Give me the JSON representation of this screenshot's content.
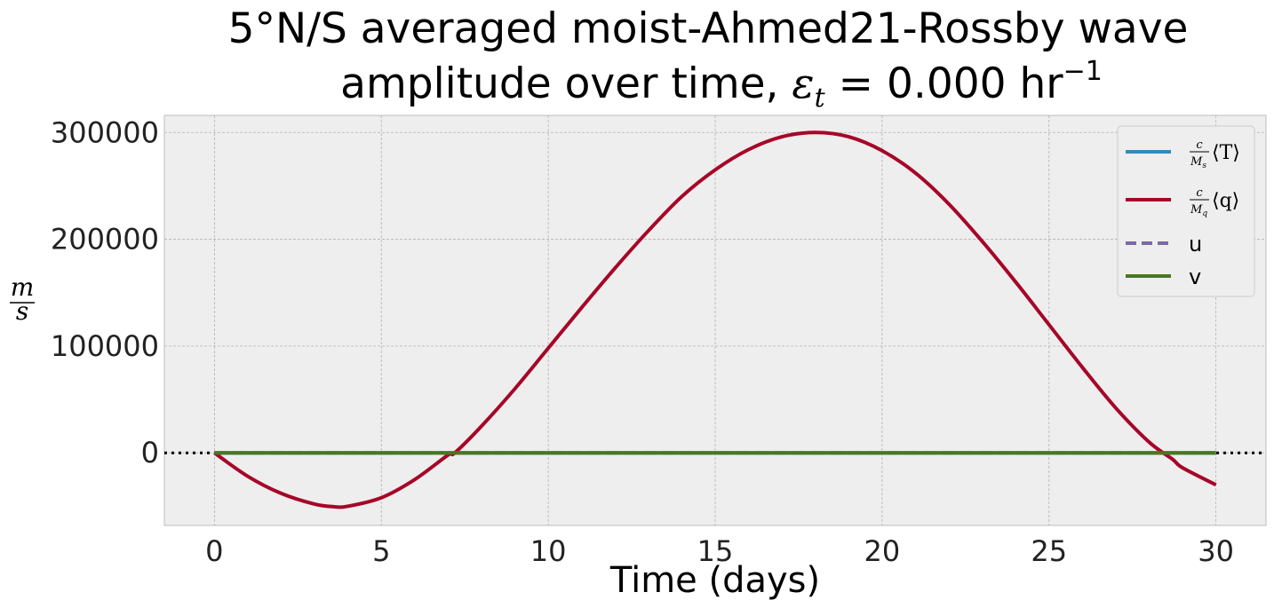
{
  "chart_data": {
    "type": "line",
    "title_line1": "5°N/S averaged moist-Ahmed21-Rossby wave",
    "title_line2_prefix": "amplitude over time, ",
    "title_eps": "ε",
    "title_eps_sub": "t",
    "title_line2_value": " = 0.000 hr",
    "title_exp": "−1",
    "xlabel": "Time (days)",
    "ylabel_num": "m",
    "ylabel_den": "s",
    "xlim": [
      -1.5,
      31.5
    ],
    "ylim": [
      -68000,
      316000
    ],
    "xticks": [
      0,
      5,
      10,
      15,
      20,
      25,
      30
    ],
    "yticks": [
      0,
      100000,
      200000,
      300000
    ],
    "grid": true,
    "zero_line": true,
    "legend_position": "top-right",
    "x": [
      0,
      1,
      2,
      3,
      3.6,
      4,
      5,
      6,
      7,
      7.2,
      8,
      9,
      10,
      11,
      12,
      13,
      14,
      15,
      16,
      17,
      18,
      19,
      20,
      21,
      22,
      23,
      24,
      25,
      26,
      27,
      28,
      28.7,
      29,
      30
    ],
    "series": [
      {
        "name": "T",
        "label_frac_num": "c",
        "label_frac_den": "M",
        "label_frac_den_sub": "s",
        "label_bracket": "⟨T⟩",
        "color": "#348ABD",
        "dash": "solid",
        "values": [
          0,
          0,
          0,
          0,
          0,
          0,
          0,
          0,
          0,
          0,
          0,
          0,
          0,
          0,
          0,
          0,
          0,
          0,
          0,
          0,
          0,
          0,
          0,
          0,
          0,
          0,
          0,
          0,
          0,
          0,
          0,
          0,
          0,
          0
        ]
      },
      {
        "name": "q",
        "label_frac_num": "c",
        "label_frac_den": "M",
        "label_frac_den_sub": "q",
        "label_bracket": "⟨q⟩",
        "color": "#A60628",
        "dash": "solid",
        "values": [
          0,
          -22000,
          -38000,
          -48000,
          -50500,
          -50000,
          -42000,
          -25000,
          -2000,
          0,
          25000,
          60000,
          98000,
          136000,
          173000,
          208000,
          240000,
          265000,
          284000,
          296000,
          300000,
          296000,
          283000,
          262000,
          233000,
          198000,
          160000,
          120000,
          80000,
          42000,
          10000,
          -6000,
          -14000,
          -30000
        ]
      },
      {
        "name": "u",
        "label": "u",
        "color": "#7A68A6",
        "dash": "dashed",
        "values": [
          0,
          0,
          0,
          0,
          0,
          0,
          0,
          0,
          0,
          0,
          0,
          0,
          0,
          0,
          0,
          0,
          0,
          0,
          0,
          0,
          0,
          0,
          0,
          0,
          0,
          0,
          0,
          0,
          0,
          0,
          0,
          0,
          0,
          0
        ]
      },
      {
        "name": "v",
        "label": "v",
        "color": "#467821",
        "dash": "solid",
        "values": [
          0,
          0,
          0,
          0,
          0,
          0,
          0,
          0,
          0,
          0,
          0,
          0,
          0,
          0,
          0,
          0,
          0,
          0,
          0,
          0,
          0,
          0,
          0,
          0,
          0,
          0,
          0,
          0,
          0,
          0,
          0,
          0,
          0,
          0
        ]
      }
    ]
  }
}
